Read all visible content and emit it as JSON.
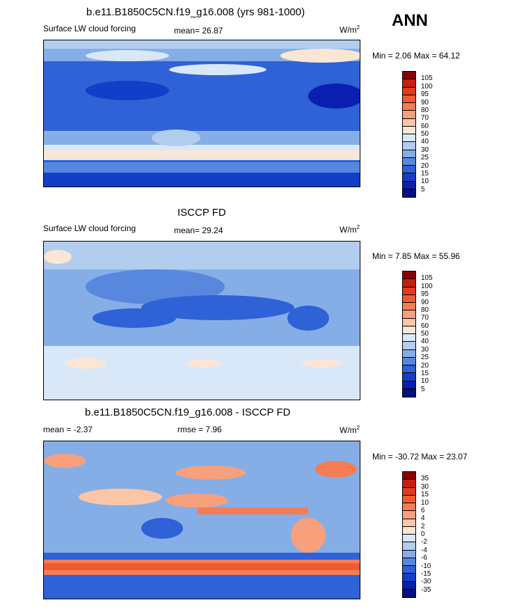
{
  "season": "ANN",
  "panels": [
    {
      "title": "b.e11.B1850C5CN.f19_g16.008 (yrs 981-1000)",
      "left_label": "Surface LW cloud forcing",
      "center_label": "mean=  26.87",
      "units": "W/m",
      "units_sup": "2",
      "minmax": "Min =   2.06 Max =  64.12",
      "levels": [
        "105",
        "100",
        "95",
        "90",
        "80",
        "70",
        "60",
        "50",
        "40",
        "30",
        "25",
        "20",
        "15",
        "10",
        "5"
      ],
      "colors": [
        "#8b0000",
        "#c81e0e",
        "#e23a1c",
        "#ef5a30",
        "#f47d54",
        "#f8a07c",
        "#fbc6a8",
        "#fbe6d6",
        "#d9e8f8",
        "#b3cdef",
        "#86aee6",
        "#5887de",
        "#2e62d6",
        "#133ec8",
        "#0a1eb0",
        "#04107e"
      ]
    },
    {
      "title": "ISCCP FD",
      "left_label": "Surface LW cloud forcing",
      "center_label": "mean=  29.24",
      "units": "W/m",
      "units_sup": "2",
      "minmax": "Min =   7.85 Max =  55.96",
      "levels": [
        "105",
        "100",
        "95",
        "90",
        "80",
        "70",
        "60",
        "50",
        "40",
        "30",
        "25",
        "20",
        "15",
        "10",
        "5"
      ],
      "colors": [
        "#8b0000",
        "#c81e0e",
        "#e23a1c",
        "#ef5a30",
        "#f47d54",
        "#f8a07c",
        "#fbc6a8",
        "#fbe6d6",
        "#d9e8f8",
        "#b3cdef",
        "#86aee6",
        "#5887de",
        "#2e62d6",
        "#133ec8",
        "#0a1eb0",
        "#04107e"
      ]
    },
    {
      "title": "b.e11.B1850C5CN.f19_g16.008 - ISCCP FD",
      "left_label": "mean =  -2.37",
      "center_label": "rmse =   7.96",
      "units": "W/m",
      "units_sup": "2",
      "minmax": "Min = -30.72 Max =  23.07",
      "levels": [
        "35",
        "30",
        "15",
        "10",
        "6",
        "4",
        "2",
        "0",
        "-2",
        "-4",
        "-6",
        "-10",
        "-15",
        "-30",
        "-35"
      ],
      "colors": [
        "#8b0000",
        "#c81e0e",
        "#e23a1c",
        "#ef5a30",
        "#f47d54",
        "#f8a07c",
        "#fbc6a8",
        "#fbe6d6",
        "#d9e8f8",
        "#b3cdef",
        "#86aee6",
        "#5887de",
        "#2e62d6",
        "#133ec8",
        "#0a1eb0",
        "#04107e"
      ]
    }
  ]
}
